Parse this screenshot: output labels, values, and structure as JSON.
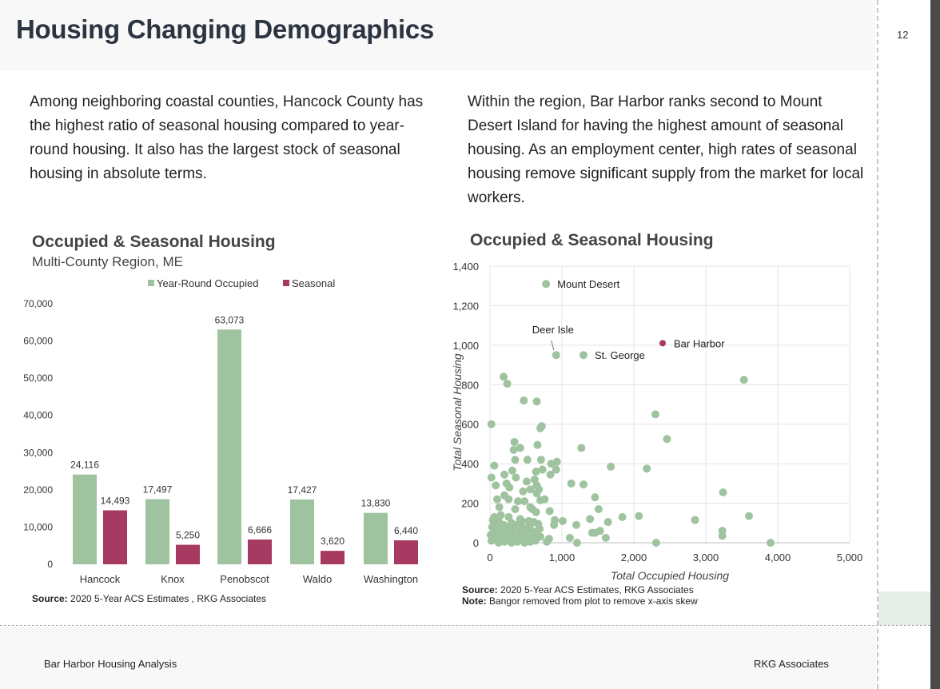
{
  "header": {
    "title": "Housing Changing Demographics",
    "page_number": "12"
  },
  "left": {
    "paragraph": "Among neighboring coastal counties, Hancock County has the highest ratio of seasonal housing compared to year-round housing. It also has the largest stock of seasonal housing in absolute terms.",
    "chart_title": "Occupied & Seasonal Housing",
    "chart_subtitle": "Multi-County Region, ME",
    "source_label": "Source:",
    "source_text": " 2020 5-Year ACS Estimates , RKG Associates"
  },
  "right": {
    "paragraph": "Within the region, Bar Harbor ranks second to Mount Desert Island for having the highest amount of seasonal housing. As an employment center, high rates of seasonal housing remove significant supply from the market for local workers.",
    "chart_title": "Occupied & Seasonal Housing",
    "source_label": "Source:",
    "source_text": " 2020 5-Year ACS Estimates, RKG Associates",
    "note_label": "Note:",
    "note_text": " Bangor removed from plot to remove x-axis skew"
  },
  "footer": {
    "left": "Bar Harbor Housing Analysis",
    "right": "RKG Associates"
  },
  "colors": {
    "green": "#9ec39e",
    "red": "#a73a60"
  },
  "chart_data": [
    {
      "type": "bar",
      "categories": [
        "Hancock",
        "Knox",
        "Penobscot",
        "Waldo",
        "Washington"
      ],
      "series": [
        {
          "name": "Year-Round Occupied",
          "values": [
            24116,
            17497,
            63073,
            17427,
            13830
          ],
          "labels": [
            "24,116",
            "17,497",
            "63,073",
            "17,427",
            "13,830"
          ]
        },
        {
          "name": "Seasonal",
          "values": [
            14493,
            5250,
            6666,
            3620,
            6440
          ],
          "labels": [
            "14,493",
            "5,250",
            "6,666",
            "3,620",
            "6,440"
          ]
        }
      ],
      "ylim": [
        0,
        70000
      ],
      "yticks": [
        0,
        10000,
        20000,
        30000,
        40000,
        50000,
        60000,
        70000
      ],
      "ytick_labels": [
        "0",
        "10,000",
        "20,000",
        "30,000",
        "40,000",
        "50,000",
        "60,000",
        "70,000"
      ],
      "legend": "top",
      "grid": false
    },
    {
      "type": "scatter",
      "xlabel": "Total Occupied Housing",
      "ylabel": "Total Seasonal Housing",
      "xlim": [
        0,
        5000
      ],
      "ylim": [
        0,
        1400
      ],
      "xticks": [
        0,
        1000,
        2000,
        3000,
        4000,
        5000
      ],
      "xtick_labels": [
        "0",
        "1,000",
        "2,000",
        "3,000",
        "4,000",
        "5,000"
      ],
      "yticks": [
        0,
        200,
        400,
        600,
        800,
        1000,
        1200,
        1400
      ],
      "ytick_labels": [
        "0",
        "200",
        "400",
        "600",
        "800",
        "1,000",
        "1,200",
        "1,400"
      ],
      "grid": true,
      "labeled_points": [
        {
          "label": "Mount Desert",
          "x": 780,
          "y": 1310,
          "highlight": false
        },
        {
          "label": "Deer Isle",
          "x": 920,
          "y": 950,
          "highlight": false
        },
        {
          "label": "St. George",
          "x": 1300,
          "y": 950,
          "highlight": false
        },
        {
          "label": "Bar Harbor",
          "x": 2400,
          "y": 1010,
          "highlight": true
        }
      ],
      "points": [
        [
          190,
          840
        ],
        [
          240,
          805
        ],
        [
          470,
          720
        ],
        [
          650,
          715
        ],
        [
          20,
          600
        ],
        [
          700,
          580
        ],
        [
          720,
          590
        ],
        [
          2300,
          650
        ],
        [
          2460,
          525
        ],
        [
          3530,
          825
        ],
        [
          340,
          510
        ],
        [
          660,
          495
        ],
        [
          330,
          470
        ],
        [
          420,
          480
        ],
        [
          1270,
          480
        ],
        [
          350,
          420
        ],
        [
          520,
          420
        ],
        [
          710,
          420
        ],
        [
          60,
          390
        ],
        [
          850,
          400
        ],
        [
          930,
          410
        ],
        [
          920,
          370
        ],
        [
          730,
          370
        ],
        [
          1680,
          385
        ],
        [
          2180,
          375
        ],
        [
          310,
          365
        ],
        [
          640,
          360
        ],
        [
          840,
          345
        ],
        [
          20,
          330
        ],
        [
          360,
          330
        ],
        [
          200,
          345
        ],
        [
          510,
          310
        ],
        [
          620,
          320
        ],
        [
          80,
          290
        ],
        [
          230,
          300
        ],
        [
          270,
          280
        ],
        [
          1130,
          300
        ],
        [
          1300,
          295
        ],
        [
          650,
          290
        ],
        [
          680,
          270
        ],
        [
          3240,
          255
        ],
        [
          460,
          260
        ],
        [
          560,
          270
        ],
        [
          650,
          250
        ],
        [
          200,
          240
        ],
        [
          100,
          220
        ],
        [
          260,
          220
        ],
        [
          1460,
          230
        ],
        [
          700,
          215
        ],
        [
          760,
          220
        ],
        [
          390,
          210
        ],
        [
          480,
          210
        ],
        [
          130,
          180
        ],
        [
          560,
          180
        ],
        [
          590,
          170
        ],
        [
          350,
          170
        ],
        [
          640,
          155
        ],
        [
          830,
          160
        ],
        [
          1510,
          170
        ],
        [
          2070,
          135
        ],
        [
          1840,
          130
        ],
        [
          3600,
          135
        ],
        [
          2850,
          115
        ],
        [
          1390,
          120
        ],
        [
          900,
          115
        ],
        [
          1010,
          110
        ],
        [
          40,
          115
        ],
        [
          120,
          110
        ],
        [
          300,
          100
        ],
        [
          440,
          110
        ],
        [
          610,
          105
        ],
        [
          1640,
          105
        ],
        [
          1200,
          90
        ],
        [
          890,
          90
        ],
        [
          670,
          95
        ],
        [
          3230,
          60
        ],
        [
          3230,
          35
        ],
        [
          1530,
          60
        ],
        [
          1420,
          50
        ],
        [
          1460,
          50
        ],
        [
          1110,
          25
        ],
        [
          1610,
          25
        ],
        [
          820,
          20
        ],
        [
          790,
          5
        ],
        [
          1210,
          0
        ],
        [
          2310,
          0
        ],
        [
          3900,
          0
        ],
        [
          10,
          40
        ],
        [
          30,
          80
        ],
        [
          50,
          20
        ],
        [
          70,
          60
        ],
        [
          90,
          100
        ],
        [
          110,
          30
        ],
        [
          130,
          70
        ],
        [
          150,
          10
        ],
        [
          170,
          50
        ],
        [
          190,
          90
        ],
        [
          210,
          20
        ],
        [
          230,
          60
        ],
        [
          250,
          40
        ],
        [
          270,
          80
        ],
        [
          290,
          10
        ],
        [
          310,
          50
        ],
        [
          330,
          30
        ],
        [
          350,
          70
        ],
        [
          370,
          90
        ],
        [
          390,
          20
        ],
        [
          410,
          60
        ],
        [
          430,
          40
        ],
        [
          450,
          80
        ],
        [
          470,
          10
        ],
        [
          490,
          50
        ],
        [
          510,
          30
        ],
        [
          530,
          70
        ],
        [
          550,
          90
        ],
        [
          570,
          20
        ],
        [
          590,
          60
        ],
        [
          610,
          40
        ],
        [
          630,
          10
        ],
        [
          650,
          50
        ],
        [
          670,
          30
        ],
        [
          690,
          70
        ],
        [
          20,
          10
        ],
        [
          60,
          130
        ],
        [
          150,
          140
        ],
        [
          260,
          130
        ],
        [
          420,
          120
        ],
        [
          540,
          110
        ],
        [
          200,
          5
        ],
        [
          380,
          5
        ],
        [
          560,
          5
        ],
        [
          120,
          0
        ],
        [
          300,
          0
        ],
        [
          480,
          0
        ],
        [
          700,
          30
        ]
      ]
    }
  ]
}
